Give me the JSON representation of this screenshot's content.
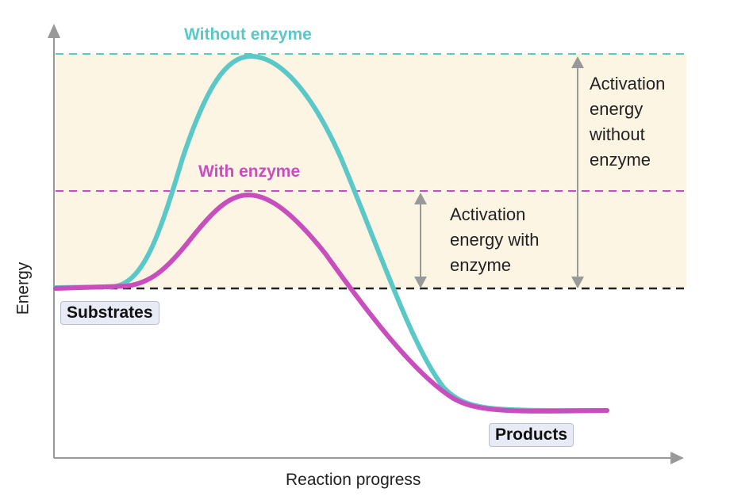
{
  "curves": {
    "without_enzyme": {
      "label": "Without enzyme",
      "color": "#5bc8c8"
    },
    "with_enzyme": {
      "label": "With enzyme",
      "color": "#c84dbd"
    }
  },
  "annotations": {
    "activation_without": [
      "Activation",
      "energy",
      "without",
      "enzyme"
    ],
    "activation_with": [
      "Activation",
      "energy with",
      "enzyme"
    ]
  },
  "states": {
    "substrates": "Substrates",
    "products": "Products"
  },
  "axes": {
    "x_label": "Reaction progress",
    "y_label": "Energy"
  },
  "colors": {
    "shading": "#fdf5e4",
    "axis": "#999999",
    "baseline": "#222222"
  }
}
